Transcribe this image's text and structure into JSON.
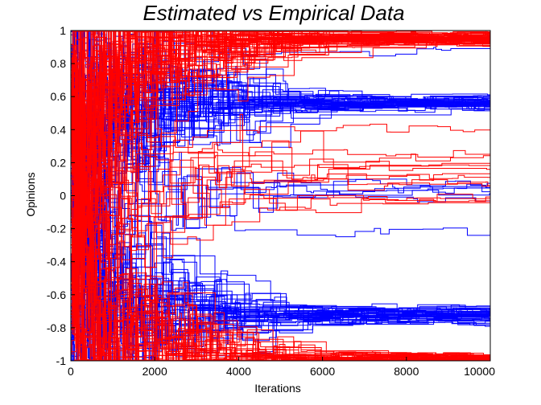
{
  "chart_data": {
    "type": "line",
    "title": "Estimated vs Empirical Data",
    "xlabel": "Iterations",
    "ylabel": "Opinions",
    "xlim": [
      0,
      10000
    ],
    "ylim": [
      -1,
      1
    ],
    "xticks": [
      "0",
      "2000",
      "4000",
      "6000",
      "8000",
      "10000"
    ],
    "yticks": [
      "1",
      "0.8",
      "0.6",
      "0.4",
      "0.2",
      "0",
      "-0.2",
      "-0.4",
      "-0.6",
      "-0.8",
      "-1"
    ],
    "grid": false,
    "legend": "none",
    "series_colors": {
      "red": "#ff0000",
      "blue": "#0000ff"
    },
    "series": [
      {
        "color": "red",
        "count": 60,
        "final_values": [
          0.95,
          0.96,
          0.94,
          0.97,
          0.93,
          0.95,
          0.96,
          0.94,
          0.95,
          0.96,
          0.97,
          0.94,
          0.95,
          0.93,
          0.96,
          0.95,
          0.94,
          0.96,
          0.95,
          0.97
        ]
      },
      {
        "color": "red",
        "count": 40,
        "final_values": [
          -0.98,
          -0.99,
          -0.97,
          -0.98,
          -0.99,
          -0.98,
          -0.97,
          -0.99,
          -0.98,
          -0.98
        ]
      },
      {
        "color": "blue",
        "count": 45,
        "final_values": [
          0.57,
          0.55,
          0.58,
          0.56,
          0.54,
          0.57,
          0.55,
          0.56,
          0.58,
          0.55
        ]
      },
      {
        "color": "blue",
        "count": 45,
        "final_values": [
          -0.72,
          -0.7,
          -0.74,
          -0.71,
          -0.73,
          -0.75,
          -0.69,
          -0.72,
          -0.76,
          -0.7
        ]
      },
      {
        "color": "red",
        "count": 14,
        "final_values": [
          0.25,
          0.2,
          0.16,
          0.1,
          0.05,
          0.0,
          -0.02,
          -0.04,
          0.23,
          0.41,
          0.18,
          0.12,
          0.07,
          -0.01
        ]
      },
      {
        "color": "blue",
        "count": 8,
        "final_values": [
          0.88,
          0.05,
          0.08,
          0.03,
          -0.23,
          0.02,
          0.07,
          -0.03
        ]
      }
    ]
  }
}
